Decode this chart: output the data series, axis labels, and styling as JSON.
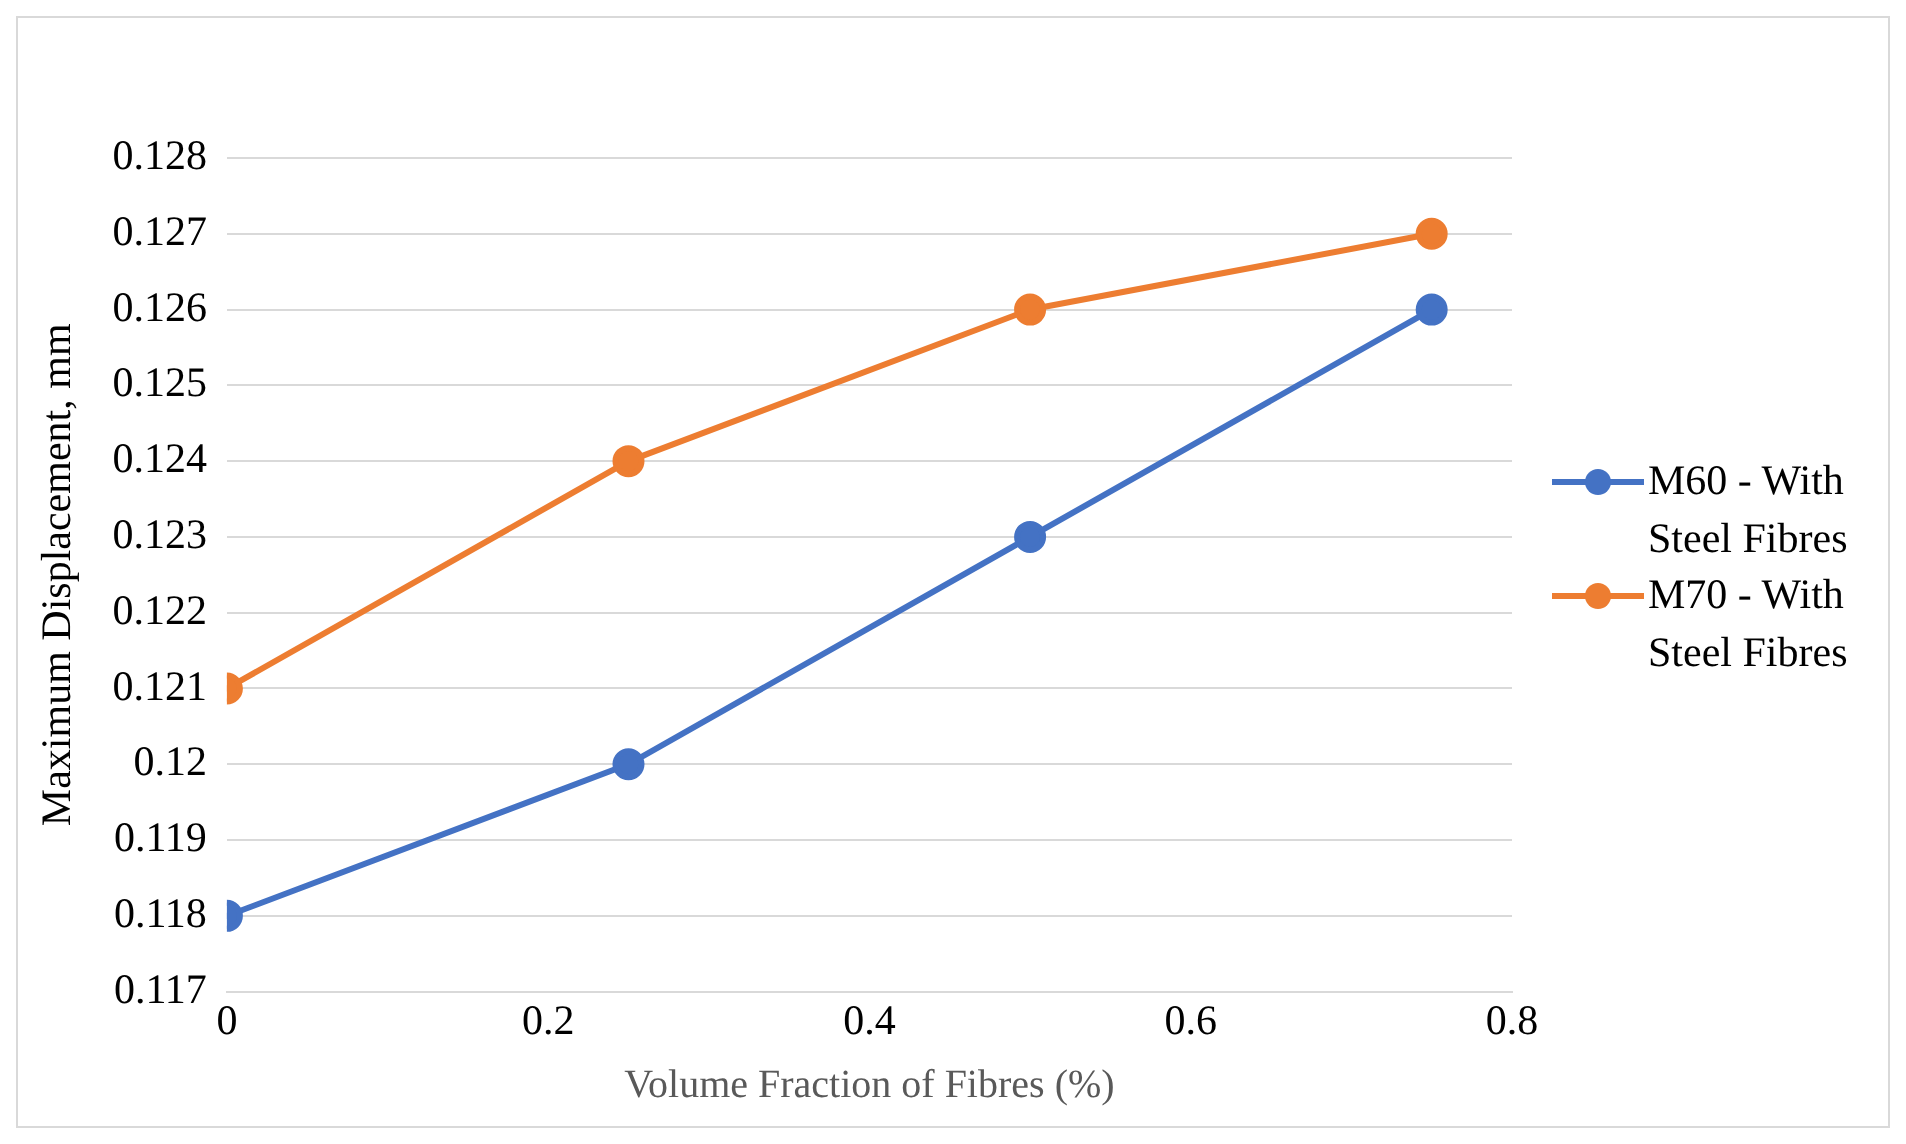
{
  "chart_data": {
    "type": "line",
    "xlabel": "Volume Fraction of Fibres (%)",
    "ylabel": "Maximum Displacement, mm",
    "x": [
      0,
      0.25,
      0.5,
      0.75
    ],
    "series": [
      {
        "name": "M60 - With Steel Fibres",
        "color": "#4472c4",
        "values": [
          0.118,
          0.12,
          0.123,
          0.126
        ]
      },
      {
        "name": "M70 - With Steel Fibres",
        "color": "#ed7d31",
        "values": [
          0.121,
          0.124,
          0.126,
          0.127
        ]
      }
    ],
    "xlim": [
      0,
      0.8
    ],
    "xticks": [
      0,
      0.2,
      0.4,
      0.6,
      0.8
    ],
    "ylim": [
      0.117,
      0.128
    ],
    "yticks": [
      0.117,
      0.118,
      0.119,
      0.12,
      0.121,
      0.122,
      0.123,
      0.124,
      0.125,
      0.126,
      0.127,
      0.128
    ],
    "grid": "y",
    "legend": "right",
    "marker": "circle",
    "line_style": "solid"
  }
}
